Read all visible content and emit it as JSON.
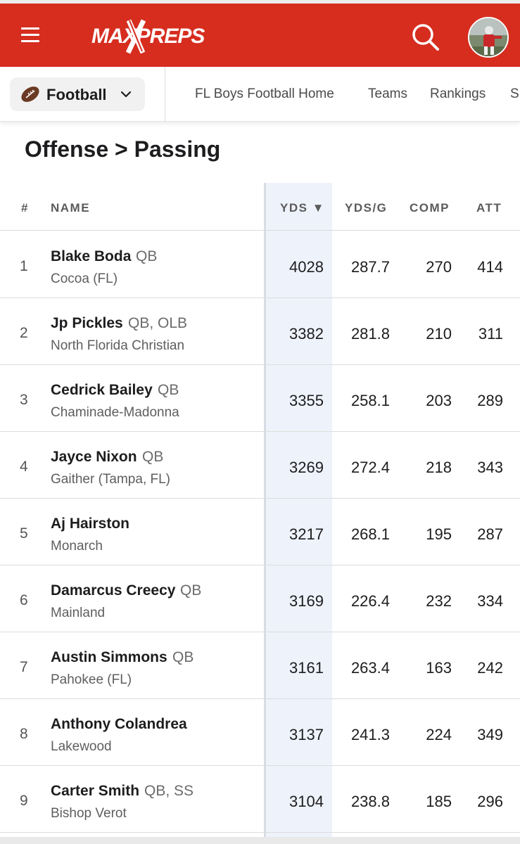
{
  "brand": {
    "logo_text": "MAXPREPS",
    "header_color": "#d62d1f"
  },
  "subnav": {
    "sport": "Football",
    "links": [
      "FL Boys Football Home",
      "Teams",
      "Rankings",
      "S"
    ]
  },
  "page_title": "Offense > Passing",
  "table": {
    "headers": {
      "rank": "#",
      "name": "NAME",
      "yds": "YDS ▼",
      "ydsg": "YDS/G",
      "comp": "COMP",
      "att": "ATT"
    },
    "sorted_by": "YDS",
    "rows": [
      {
        "rank": "1",
        "name": "Blake Boda",
        "pos": "QB",
        "school": "Cocoa (FL)",
        "yds": "4028",
        "ydsg": "287.7",
        "comp": "270",
        "att": "414"
      },
      {
        "rank": "2",
        "name": "Jp Pickles",
        "pos": "QB, OLB",
        "school": "North Florida Christian",
        "yds": "3382",
        "ydsg": "281.8",
        "comp": "210",
        "att": "311"
      },
      {
        "rank": "3",
        "name": "Cedrick Bailey",
        "pos": "QB",
        "school": "Chaminade-Madonna",
        "yds": "3355",
        "ydsg": "258.1",
        "comp": "203",
        "att": "289"
      },
      {
        "rank": "4",
        "name": "Jayce Nixon",
        "pos": "QB",
        "school": "Gaither (Tampa, FL)",
        "yds": "3269",
        "ydsg": "272.4",
        "comp": "218",
        "att": "343"
      },
      {
        "rank": "5",
        "name": "Aj Hairston",
        "pos": "",
        "school": "Monarch",
        "yds": "3217",
        "ydsg": "268.1",
        "comp": "195",
        "att": "287"
      },
      {
        "rank": "6",
        "name": "Damarcus Creecy",
        "pos": "QB",
        "school": "Mainland",
        "yds": "3169",
        "ydsg": "226.4",
        "comp": "232",
        "att": "334"
      },
      {
        "rank": "7",
        "name": "Austin Simmons",
        "pos": "QB",
        "school": "Pahokee (FL)",
        "yds": "3161",
        "ydsg": "263.4",
        "comp": "163",
        "att": "242"
      },
      {
        "rank": "8",
        "name": "Anthony Colandrea",
        "pos": "",
        "school": "Lakewood",
        "yds": "3137",
        "ydsg": "241.3",
        "comp": "224",
        "att": "349"
      },
      {
        "rank": "9",
        "name": "Carter Smith",
        "pos": "QB, SS",
        "school": "Bishop Verot",
        "yds": "3104",
        "ydsg": "238.8",
        "comp": "185",
        "att": "296"
      }
    ]
  }
}
